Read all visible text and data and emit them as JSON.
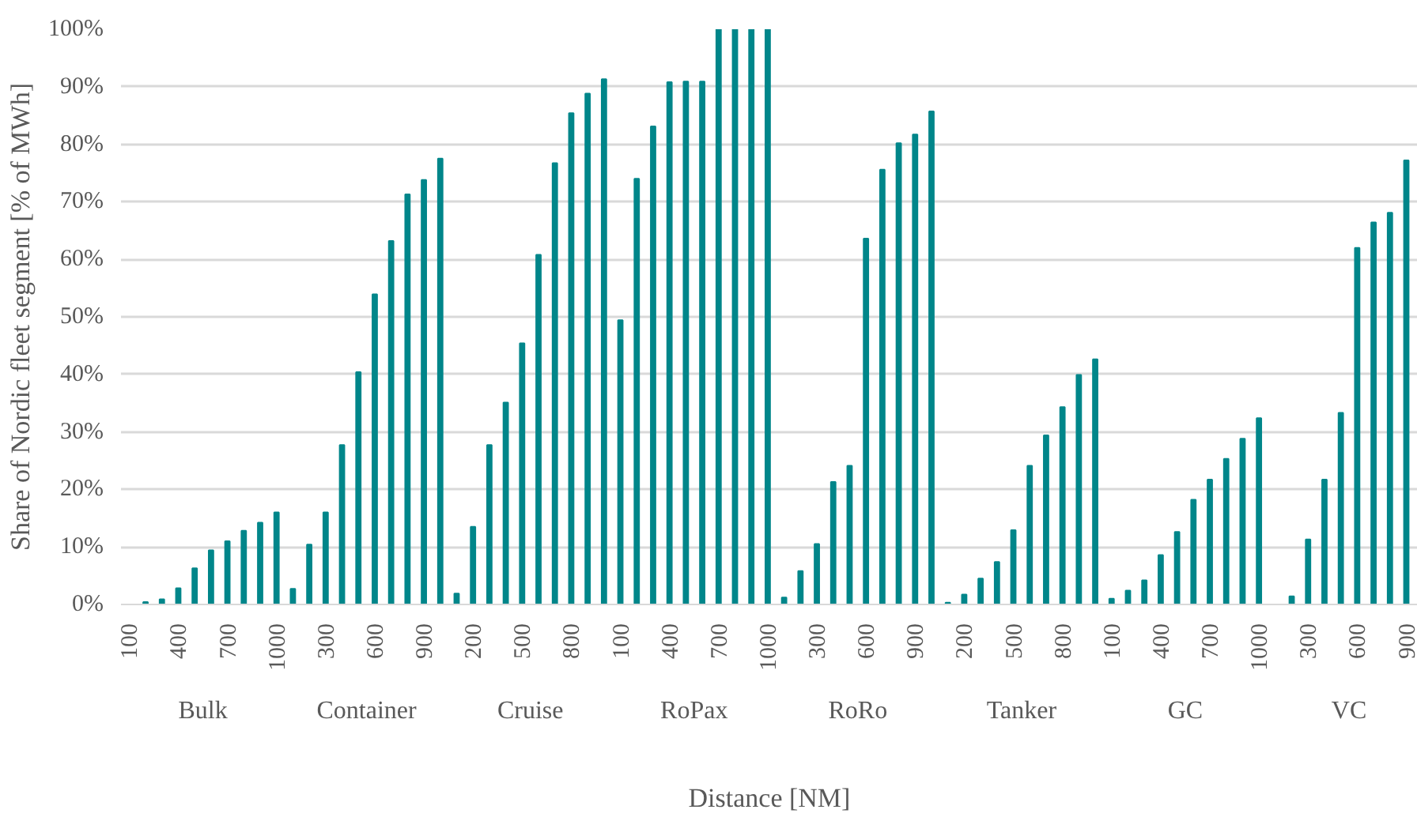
{
  "chart_data": {
    "type": "bar",
    "xlabel": "Distance [NM]",
    "ylabel": "Share of Nordic fleet segment [% of MWh]",
    "categories": [
      "100",
      null,
      null,
      "400",
      null,
      null,
      "700",
      null,
      null,
      "1000",
      null,
      null,
      "300",
      null,
      null,
      "600",
      null,
      null,
      "900",
      null,
      null,
      "200",
      null,
      null,
      "500",
      null,
      null,
      "800",
      null,
      null,
      "100",
      null,
      null,
      "400",
      null,
      null,
      "700",
      null,
      null,
      "1000",
      null,
      null,
      "300",
      null,
      null,
      "600",
      null,
      null,
      "900",
      null,
      null,
      "200",
      null,
      null,
      "500",
      null,
      null,
      "800",
      null,
      null,
      "100",
      null,
      null,
      "400",
      null,
      null,
      "700",
      null,
      null,
      "1000",
      null,
      null,
      "300",
      null,
      null,
      "600",
      null,
      null,
      "900"
    ],
    "annotations": [
      "Bulk",
      "Container",
      "Cruise",
      "RoPax",
      "RoRo",
      "Tanker",
      "GC",
      "VC"
    ],
    "color": "#00868a",
    "values": [
      0,
      0.4,
      0.9,
      2.8,
      6.3,
      9.4,
      11,
      12.8,
      14.2,
      16,
      2.7,
      10.4,
      16,
      27.7,
      40.4,
      53.9,
      63.2,
      71.3,
      73.8,
      77.5,
      1.9,
      13.5,
      27.7,
      35.1,
      45.4,
      60.8,
      76.7,
      85.4,
      88.8,
      91.3,
      49.4,
      74,
      83.1,
      90.8,
      90.9,
      90.9,
      100,
      100,
      100,
      100,
      1.2,
      5.8,
      10.5,
      21.3,
      24.1,
      63.6,
      75.6,
      80.2,
      81.7,
      85.7,
      0.3,
      1.7,
      4.5,
      7.4,
      12.9,
      24.1,
      29.4,
      34.3,
      39.9,
      42.6,
      1,
      2.4,
      4.2,
      8.6,
      12.6,
      18.2,
      21.7,
      25.3,
      28.8,
      32.4,
      0,
      1.4,
      11.3,
      21.7,
      33.3,
      62,
      66.4,
      68.1,
      77.2
    ],
    "ylim": [
      0,
      100
    ],
    "yticks": [
      {
        "value": 0,
        "label": "0%"
      },
      {
        "value": 10,
        "label": "10%"
      },
      {
        "value": 20,
        "label": "20%"
      },
      {
        "value": 30,
        "label": "30%"
      },
      {
        "value": 40,
        "label": "40%"
      },
      {
        "value": 50,
        "label": "50%"
      },
      {
        "value": 60,
        "label": "60%"
      },
      {
        "value": 70,
        "label": "70%"
      },
      {
        "value": 80,
        "label": "80%"
      },
      {
        "value": 90,
        "label": "90%"
      },
      {
        "value": 100,
        "label": "100%"
      }
    ],
    "grid": "y"
  }
}
